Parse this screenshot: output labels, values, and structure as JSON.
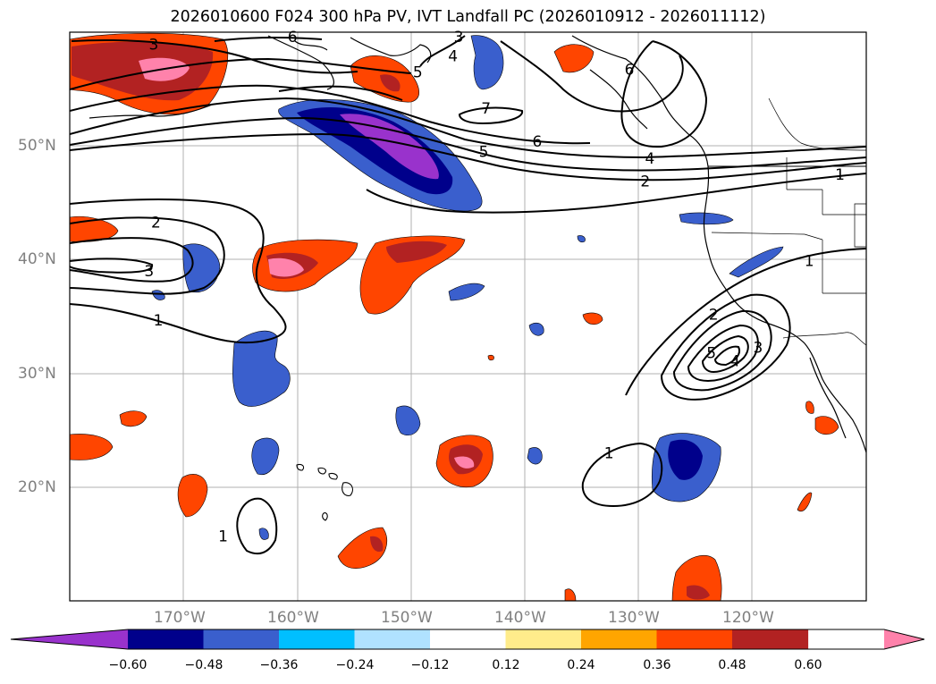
{
  "title": "2026010600 F024 300 hPa PV, IVT Landfall PC (2026010912 - 2026011112)",
  "map": {
    "lat_labels": [
      "50°N",
      "40°N",
      "30°N",
      "20°N"
    ],
    "lon_labels": [
      "170°W",
      "160°W",
      "150°W",
      "140°W",
      "130°W",
      "120°W"
    ],
    "contour_labels": [
      {
        "text": "3",
        "lon": -172.6,
        "lat": 58.9
      },
      {
        "text": "6",
        "lon": -160.4,
        "lat": 59.6
      },
      {
        "text": "3",
        "lon": -145.8,
        "lat": 59.6
      },
      {
        "text": "4",
        "lon": -146.3,
        "lat": 57.9
      },
      {
        "text": "5",
        "lon": -149.4,
        "lat": 56.5
      },
      {
        "text": "7",
        "lon": -143.4,
        "lat": 53.3
      },
      {
        "text": "6",
        "lon": -130.8,
        "lat": 56.7
      },
      {
        "text": "6",
        "lon": -138.9,
        "lat": 50.4
      },
      {
        "text": "5",
        "lon": -143.6,
        "lat": 49.5
      },
      {
        "text": "4",
        "lon": -129.0,
        "lat": 48.9
      },
      {
        "text": "2",
        "lon": -129.4,
        "lat": 46.9
      },
      {
        "text": "1",
        "lon": -112.3,
        "lat": 47.5
      },
      {
        "text": "2",
        "lon": -172.4,
        "lat": 43.3
      },
      {
        "text": "3",
        "lon": -173.0,
        "lat": 39.0
      },
      {
        "text": "1",
        "lon": -172.2,
        "lat": 34.7
      },
      {
        "text": "1",
        "lon": -115.0,
        "lat": 39.9
      },
      {
        "text": "2",
        "lon": -123.4,
        "lat": 35.2
      },
      {
        "text": "5",
        "lon": -123.6,
        "lat": 31.8
      },
      {
        "text": "4",
        "lon": -121.5,
        "lat": 31.1
      },
      {
        "text": "3",
        "lon": -119.5,
        "lat": 32.3
      },
      {
        "text": "1",
        "lon": -132.6,
        "lat": 23.0
      },
      {
        "text": "1",
        "lon": -166.5,
        "lat": 15.7
      }
    ]
  },
  "colorbar": {
    "colors": [
      "#9932cc",
      "#00008b",
      "#3a5fcd",
      "#00bfff",
      "#b0e2ff",
      "#ffffff",
      "#ffec8b",
      "#ffa500",
      "#ff4500",
      "#b22222",
      "#ff82ab"
    ],
    "tick_labels": [
      "−0.60",
      "−0.48",
      "−0.36",
      "−0.24",
      "−0.12",
      "0.12",
      "0.24",
      "0.36",
      "0.48",
      "0.60"
    ]
  }
}
